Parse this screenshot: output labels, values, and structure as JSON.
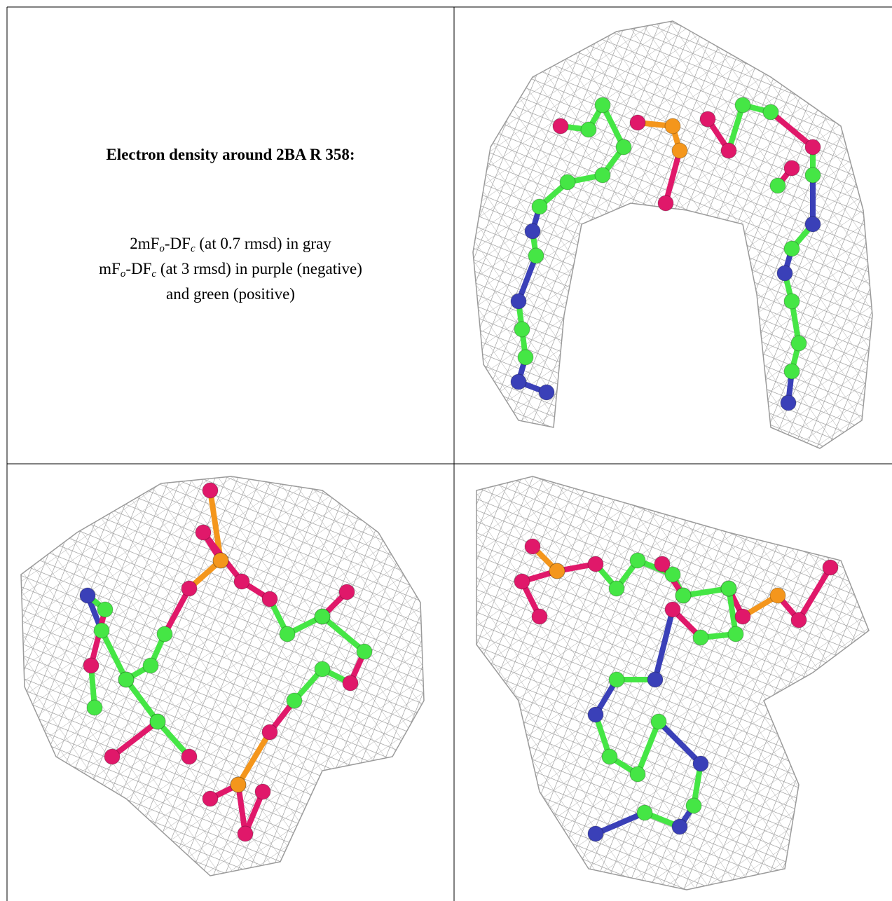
{
  "caption": {
    "title": "Electron density around 2BA R 358:",
    "lines": [
      [
        {
          "text": "2mF"
        },
        {
          "sub": "o"
        },
        {
          "text": "-DF"
        },
        {
          "sub": "c"
        },
        {
          "text": " (at 0.7 rmsd) in gray"
        }
      ],
      [
        {
          "text": "mF"
        },
        {
          "sub": "o"
        },
        {
          "text": "-DF"
        },
        {
          "sub": "c"
        },
        {
          "text": " (at 3 rmsd) in purple (negative)"
        }
      ],
      [
        {
          "text": "and green (positive)"
        }
      ]
    ]
  }
}
